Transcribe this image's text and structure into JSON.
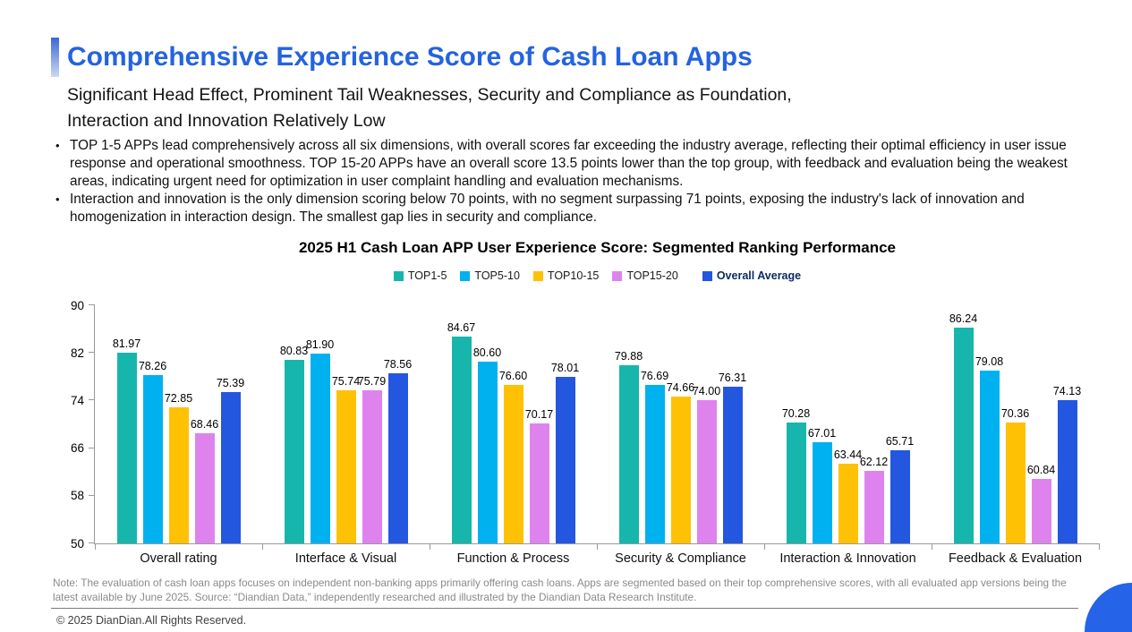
{
  "header": {
    "title": "Comprehensive Experience Score of Cash Loan Apps",
    "subtitle": "Significant Head Effect, Prominent Tail Weaknesses, Security and Compliance as Foundation,\nInteraction and Innovation Relatively Low"
  },
  "bullets": [
    "TOP 1-5 APPs lead comprehensively across all six dimensions, with overall scores far exceeding the industry average, reflecting their optimal efficiency in user issue response and operational smoothness. TOP 15-20 APPs have an overall score 13.5 points lower than the top group, with feedback and evaluation being the weakest areas, indicating urgent need for optimization in user complaint handling and evaluation mechanisms.",
    "Interaction and innovation is the only dimension scoring below 70 points, with no segment surpassing 71 points, exposing the industry's lack of innovation and homogenization in interaction design. The smallest gap lies in security and compliance."
  ],
  "chart_data": {
    "type": "bar",
    "title": "2025 H1 Cash Loan APP User Experience Score: Segmented Ranking Performance",
    "categories": [
      "Overall rating",
      "Interface & Visual",
      "Function & Process",
      "Security & Compliance",
      "Interaction & Innovation",
      "Feedback & Evaluation"
    ],
    "series": [
      {
        "name": "TOP1-5",
        "color": "#17b6ac",
        "values": [
          81.97,
          80.83,
          84.67,
          79.88,
          70.28,
          86.24
        ]
      },
      {
        "name": "TOP5-10",
        "color": "#00b1f0",
        "values": [
          78.26,
          81.9,
          80.6,
          76.69,
          67.01,
          79.08
        ]
      },
      {
        "name": "TOP10-15",
        "color": "#ffc103",
        "values": [
          72.85,
          75.74,
          76.6,
          74.66,
          63.44,
          70.36
        ]
      },
      {
        "name": "TOP15-20",
        "color": "#de83ee",
        "values": [
          68.46,
          75.79,
          70.17,
          74.0,
          62.12,
          60.84
        ]
      },
      {
        "name": "Overall Average",
        "color": "#2457e0",
        "values": [
          75.39,
          78.56,
          78.01,
          76.31,
          65.71,
          74.13
        ],
        "bold_legend": true
      }
    ],
    "ylim": [
      50,
      90
    ],
    "yticks": [
      50,
      58,
      66,
      74,
      82,
      90
    ],
    "grid": false,
    "legend_position": "top",
    "value_labels": true,
    "value_decimals": 2
  },
  "note": "Note: The evaluation of cash loan apps focuses on independent non-banking apps primarily offering cash loans. Apps are segmented based on their top comprehensive scores, with all evaluated app versions being the latest available by June 2025. Source: “Diandian Data,” independently researched and illustrated by the Diandian Data Research Institute.",
  "footer": {
    "copyright": "© 2025 DianDian.All Rights Reserved."
  },
  "accent_color": "#2463e0",
  "corner_color": "#2563e8"
}
